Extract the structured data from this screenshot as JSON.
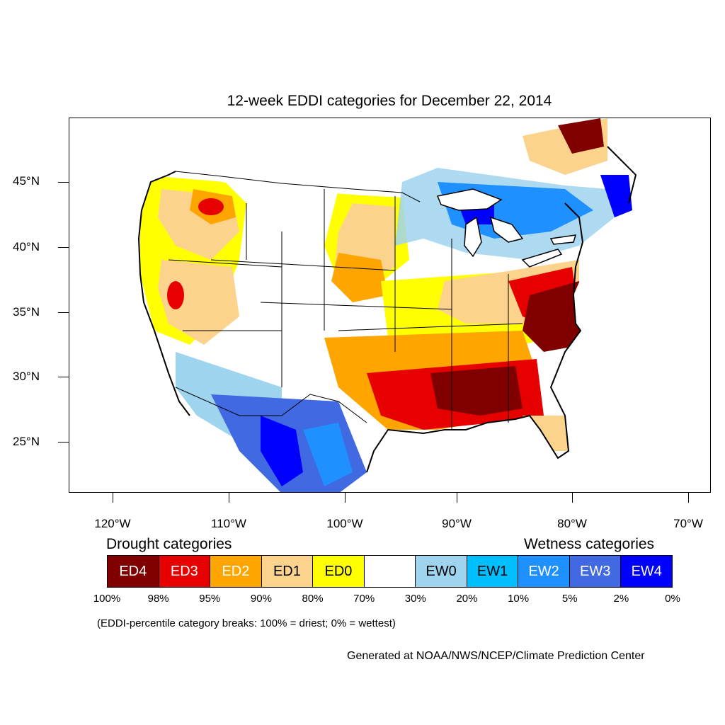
{
  "title": "12-week EDDI categories for December 22, 2014",
  "lat_axis": [
    "45°N",
    "40°N",
    "35°N",
    "30°N",
    "25°N"
  ],
  "lon_axis": [
    "120°W",
    "110°W",
    "100°W",
    "90°W",
    "80°W",
    "70°W"
  ],
  "legend": {
    "drought_heading": "Drought categories",
    "wetness_heading": "Wetness categories",
    "categories": [
      {
        "label": "ED4",
        "color": "#800000",
        "text_color": "#ffffff"
      },
      {
        "label": "ED3",
        "color": "#e60000",
        "text_color": "#ffffff"
      },
      {
        "label": "ED2",
        "color": "#ffa500",
        "text_color": "#ffffff"
      },
      {
        "label": "ED1",
        "color": "#fcd38d",
        "text_color": "#000000"
      },
      {
        "label": "ED0",
        "color": "#ffff00",
        "text_color": "#000000"
      },
      {
        "label": "",
        "color": "#ffffff",
        "text_color": "#000000"
      },
      {
        "label": "EW0",
        "color": "#9fd4ef",
        "text_color": "#000000"
      },
      {
        "label": "EW1",
        "color": "#00bfff",
        "text_color": "#000000"
      },
      {
        "label": "EW2",
        "color": "#1e90ff",
        "text_color": "#ffffff"
      },
      {
        "label": "EW3",
        "color": "#4169e1",
        "text_color": "#ffffff"
      },
      {
        "label": "EW4",
        "color": "#0000ff",
        "text_color": "#ffffff"
      }
    ],
    "breaks": [
      "100%",
      "98%",
      "95%",
      "90%",
      "80%",
      "70%",
      "30%",
      "20%",
      "10%",
      "5%",
      "2%",
      "0%"
    ]
  },
  "note": "(EDDI-percentile category breaks: 100% = driest; 0% = wettest)",
  "credit": "Generated at NOAA/NWS/NCEP/Climate Prediction Center",
  "map": {
    "regions": [
      {
        "category": "ED0",
        "area": "Pacific Northwest and West Coast"
      },
      {
        "category": "ED2",
        "area": "Idaho / Oregon"
      },
      {
        "category": "ED3",
        "area": "Northern Idaho"
      },
      {
        "category": "ED2",
        "area": "Nevada / California"
      },
      {
        "category": "ED3",
        "area": "Central California"
      },
      {
        "category": "ED0",
        "area": "Northern Plains"
      },
      {
        "category": "ED2",
        "area": "Dakotas / Nebraska / Kansas"
      },
      {
        "category": "ED0",
        "area": "Midwest / Ohio Valley"
      },
      {
        "category": "ED2",
        "area": "Texas / Oklahoma / Arkansas"
      },
      {
        "category": "ED4",
        "area": "Gulf Coast states"
      },
      {
        "category": "ED4",
        "area": "Carolinas / Virginia"
      },
      {
        "category": "ED3",
        "area": "Mid-Atlantic"
      },
      {
        "category": "ED2",
        "area": "Florida"
      },
      {
        "category": "ED4",
        "area": "Southern Quebec"
      },
      {
        "category": "EW2",
        "area": "Great Lakes / Ontario"
      },
      {
        "category": "EW4",
        "area": "Maine / New Brunswick"
      },
      {
        "category": "EW3",
        "area": "Northern Mexico"
      },
      {
        "category": "EW0",
        "area": "Arizona / New Mexico border"
      }
    ]
  }
}
